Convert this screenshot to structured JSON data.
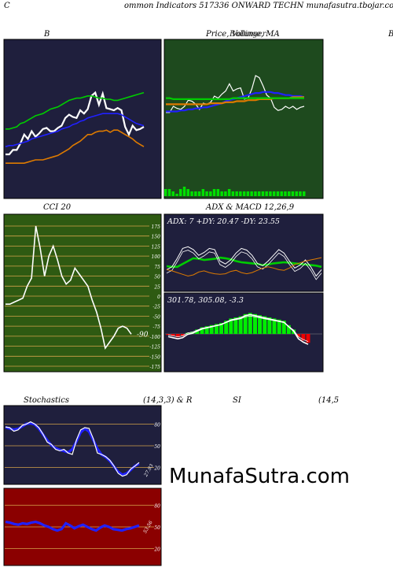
{
  "header": {
    "left_letter": "C",
    "title": "ommon  Indicators 517336  ONWARD TECHN  munafasutra.tbojar.com"
  },
  "panel_titles": {
    "bollinger": "B",
    "price_volume": "Price,  Volume,  MA",
    "price_overlap": "Bollinger",
    "right_edge": "B",
    "cci": "CCI 20",
    "adx_macd": "ADX   & MACD 12,26,9",
    "stoch_left": "Stochastics",
    "stoch_params": "(14,3,3) & R",
    "rsi": "SI",
    "rsi_params": "(14,5"
  },
  "adx_label": "ADX: 7 +DY: 20.47 -DY: 23.55",
  "macd_label": "301.78,  305.08,  -3.3",
  "watermark": "MunafaSutra.com",
  "colors": {
    "dark_panel": "#1f1f3d",
    "green_panel": "#1e4a1e",
    "cci_panel": "#2e5a12",
    "red_panel": "#8b0000",
    "grid_orange": "#d4a24a",
    "blue": "#2020ff",
    "white": "#ffffff",
    "green": "#00cc00",
    "orange": "#dd7a00"
  },
  "chart_data": [
    {
      "type": "line",
      "name": "bollinger",
      "series": [
        {
          "color": "#ffffff",
          "values": [
            10,
            10,
            14,
            14,
            20,
            28,
            24,
            31,
            26,
            29,
            33,
            34,
            31,
            31,
            34,
            36,
            43,
            46,
            44,
            43,
            50,
            47,
            51,
            63,
            66,
            55,
            65,
            52,
            51,
            50,
            52,
            50,
            35,
            28,
            36,
            32,
            33,
            35
          ]
        },
        {
          "color": "#2020ff",
          "values": [
            17,
            18,
            18,
            19,
            20,
            21,
            22,
            24,
            25,
            26,
            27,
            28,
            29,
            30,
            31,
            33,
            34,
            35,
            37,
            38,
            40,
            41,
            43,
            44,
            45,
            46,
            47,
            47,
            47,
            47,
            47,
            46,
            44,
            42,
            40,
            38,
            37,
            36
          ]
        },
        {
          "color": "#00cc00",
          "values": [
            33,
            33,
            34,
            35,
            38,
            39,
            41,
            43,
            45,
            46,
            47,
            49,
            51,
            52,
            53,
            55,
            57,
            59,
            60,
            61,
            61,
            62,
            63,
            63,
            62,
            61,
            61,
            60,
            60,
            59,
            59,
            60,
            61,
            62,
            63,
            64,
            65,
            66
          ]
        },
        {
          "color": "#dd7a00",
          "values": [
            2,
            2,
            2,
            2,
            2,
            2,
            3,
            4,
            5,
            5,
            5,
            6,
            7,
            8,
            9,
            11,
            13,
            15,
            18,
            20,
            22,
            25,
            28,
            28,
            30,
            31,
            31,
            32,
            30,
            32,
            32,
            30,
            28,
            26,
            24,
            21,
            19,
            17
          ]
        }
      ]
    },
    {
      "type": "line",
      "name": "price-volume",
      "series": [
        {
          "color": "#ffffff",
          "values": [
            44,
            44,
            50,
            48,
            47,
            50,
            56,
            55,
            52,
            47,
            53,
            52,
            54,
            60,
            58,
            62,
            65,
            72,
            65,
            67,
            68,
            57,
            58,
            67,
            80,
            78,
            70,
            61,
            58,
            49,
            46,
            47,
            50,
            48,
            50,
            47,
            49,
            50
          ]
        },
        {
          "color": "#2020ff",
          "values": [
            45,
            45,
            45,
            45,
            46,
            46,
            47,
            47,
            48,
            48,
            49,
            49,
            50,
            51,
            52,
            53,
            55,
            56,
            57,
            58,
            59,
            60,
            61,
            62,
            63,
            63,
            64,
            64,
            64,
            63,
            63,
            62,
            61,
            61,
            60,
            60,
            60,
            59
          ]
        },
        {
          "color": "#dd7a00",
          "values": [
            52,
            52,
            52,
            52,
            52,
            52,
            52,
            52,
            52,
            52,
            52,
            52,
            53,
            53,
            53,
            53,
            54,
            54,
            54,
            55,
            55,
            55,
            56,
            56,
            56,
            57,
            57,
            57,
            57,
            58,
            58,
            58,
            58,
            58,
            59,
            59,
            59,
            59
          ]
        },
        {
          "color": "#00cc00",
          "values": [
            58,
            58,
            57,
            57,
            57,
            57,
            57,
            57,
            57,
            57,
            57,
            57,
            57,
            57,
            57,
            57,
            57,
            57,
            58,
            58,
            58,
            58,
            58,
            58,
            58,
            58,
            58,
            58,
            58,
            58,
            58,
            58,
            58,
            58,
            58,
            58,
            58,
            58
          ]
        }
      ],
      "volume": [
        3,
        3,
        2,
        1,
        3,
        4,
        3,
        2,
        2,
        2,
        3,
        2,
        2,
        3,
        3,
        2,
        2,
        3,
        2,
        2,
        2,
        2,
        2,
        2,
        2,
        2,
        2,
        2,
        2,
        2,
        2,
        2,
        2,
        2,
        2,
        2,
        2,
        2
      ]
    },
    {
      "type": "line",
      "name": "cci",
      "yticks": [
        175,
        150,
        125,
        100,
        75,
        50,
        25,
        0,
        -25,
        -50,
        -75,
        -100,
        -125,
        -150,
        -175
      ],
      "ylim": [
        -175,
        175
      ],
      "last_value_label": "-90",
      "values": [
        -20,
        -20,
        -15,
        -10,
        -5,
        25,
        45,
        175,
        120,
        50,
        100,
        125,
        90,
        50,
        30,
        40,
        70,
        55,
        40,
        25,
        -10,
        -40,
        -80,
        -130,
        -115,
        -100,
        -80,
        -75,
        -80,
        -95
      ]
    },
    {
      "type": "line",
      "name": "adx",
      "series": [
        {
          "color": "#00cc00",
          "values": [
            41,
            40,
            40,
            45,
            50,
            55,
            54,
            52,
            53,
            54,
            56,
            55,
            53,
            50,
            48,
            47,
            46,
            45,
            43,
            44,
            46,
            47,
            48,
            47,
            46,
            45,
            44,
            43,
            42,
            40
          ]
        },
        {
          "color": "#ffffff",
          "values": [
            35,
            40,
            55,
            72,
            75,
            70,
            60,
            65,
            72,
            70,
            50,
            45,
            52,
            64,
            72,
            69,
            60,
            46,
            42,
            50,
            60,
            70,
            64,
            50,
            38,
            43,
            52,
            40,
            24,
            35
          ]
        },
        {
          "color": "#dd7a00",
          "values": [
            35,
            33,
            30,
            27,
            24,
            26,
            31,
            33,
            30,
            28,
            27,
            28,
            32,
            34,
            30,
            28,
            30,
            34,
            38,
            40,
            38,
            35,
            34,
            38,
            44,
            47,
            50,
            52,
            54,
            56
          ]
        }
      ]
    },
    {
      "type": "bar",
      "name": "macd",
      "label": "301.78,  305.08,  -3.3",
      "histogram": [
        -1,
        -2,
        -3,
        -2,
        1,
        2,
        4,
        6,
        7,
        8,
        9,
        10,
        12,
        14,
        15,
        16,
        18,
        19,
        18,
        17,
        16,
        15,
        14,
        13,
        12,
        8,
        4,
        -3,
        -6,
        -8
      ]
    },
    {
      "type": "line",
      "name": "stochastics",
      "yticks": [
        80,
        50,
        20
      ],
      "last_value_label": "27.93",
      "values": [
        76,
        75,
        70,
        72,
        78,
        80,
        83,
        80,
        75,
        66,
        55,
        52,
        45,
        43,
        45,
        40,
        38,
        58,
        72,
        75,
        74,
        60,
        40,
        38,
        35,
        30,
        22,
        12,
        8,
        10,
        18,
        22,
        27
      ]
    },
    {
      "type": "line",
      "name": "rsi",
      "yticks": [
        80,
        50,
        20
      ],
      "last_value_label": "53.56",
      "values": [
        57,
        56,
        54,
        53,
        55,
        54,
        56,
        57,
        55,
        52,
        50,
        47,
        45,
        47,
        55,
        52,
        48,
        51,
        53,
        50,
        47,
        45,
        49,
        52,
        50,
        47,
        46,
        45,
        47,
        48,
        50,
        52
      ]
    }
  ]
}
